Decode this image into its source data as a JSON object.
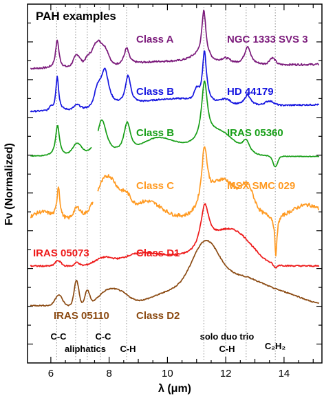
{
  "chart_data": {
    "type": "line",
    "title": "PAH examples",
    "xlabel": "λ (μm)",
    "ylabel": "Fν (Normalized)",
    "xlim": [
      5.2,
      15.3
    ],
    "ylim": [
      0,
      1
    ],
    "xticks": [
      6,
      8,
      10,
      12,
      14
    ],
    "grid": false,
    "legend": "none",
    "feature_wavelengths": [
      6.2,
      6.85,
      7.25,
      7.7,
      8.6,
      11.25,
      12.0,
      12.7,
      13.7
    ],
    "series": [
      {
        "name": "NGC 1333 SVS 3",
        "class": "Class A",
        "color": "#7b1a7b",
        "offset": 0.82,
        "y_right": 0.84
      },
      {
        "name": "HD 44179",
        "class": "Class B",
        "color": "#1515e0",
        "offset": 0.7,
        "y_right": 0.71
      },
      {
        "name": "IRAS 05360",
        "class": "Class B",
        "color": "#169e16",
        "offset": 0.575,
        "y_right": 0.57
      },
      {
        "name": "MSX SMC 029",
        "class": "Class C",
        "color": "#ff9a22",
        "offset": 0.4,
        "y_right": 0.44
      },
      {
        "name": "IRAS 05073",
        "class": "Class D1",
        "color": "#ee1a1a",
        "offset": 0.27,
        "y_right": 0.345
      },
      {
        "name": "IRAS 05110",
        "class": "Class D2",
        "color": "#8b4a12",
        "offset": 0.16,
        "y_right": 0.17
      }
    ],
    "annotations": [
      "C-C",
      "aliphatics",
      "C-C",
      "C-H",
      "solo duo trio",
      "C-H",
      "C₂H₂"
    ]
  }
}
